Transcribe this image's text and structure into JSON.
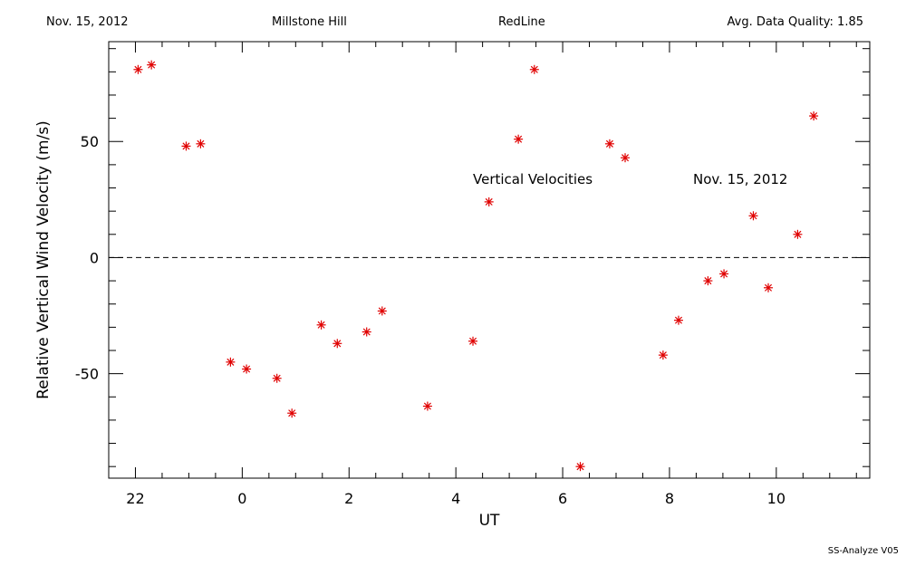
{
  "header": {
    "date": "Nov. 15, 2012",
    "site": "Millstone Hill",
    "line": "RedLine",
    "quality": "Avg. Data Quality: 1.85"
  },
  "footer": {
    "credit": "SS-Analyze V05"
  },
  "chart_data": {
    "type": "scatter",
    "xlabel": "UT",
    "ylabel": "Relative Vertical Wind Velocity (m/s)",
    "xticks": [
      22,
      0,
      2,
      4,
      6,
      8,
      10
    ],
    "yticks": [
      -50,
      0,
      50
    ],
    "xlim": [
      -2.5,
      11.75
    ],
    "ylim": [
      -95,
      93
    ],
    "zero_line": true,
    "marker_color": "#e00000",
    "annotations": [
      "Vertical Velocities",
      "Nov. 15, 2012"
    ],
    "series": [
      {
        "x": [
          -1.95,
          -1.7,
          -1.05,
          -0.78,
          -0.22,
          0.08,
          0.65,
          0.93,
          1.48,
          1.78,
          2.33,
          2.62,
          3.47,
          4.32,
          4.62,
          5.17,
          5.47,
          6.33,
          6.88,
          7.17,
          7.88,
          8.17,
          8.72,
          9.02,
          9.57,
          9.85,
          10.4,
          10.7
        ],
        "y": [
          81,
          83,
          48,
          49,
          -45,
          -48,
          -52,
          -67,
          -29,
          -37,
          -32,
          -23,
          -64,
          -36,
          24,
          51,
          81,
          -90,
          49,
          43,
          -42,
          -27,
          -10,
          -7,
          18,
          -13,
          10,
          61
        ]
      }
    ]
  }
}
